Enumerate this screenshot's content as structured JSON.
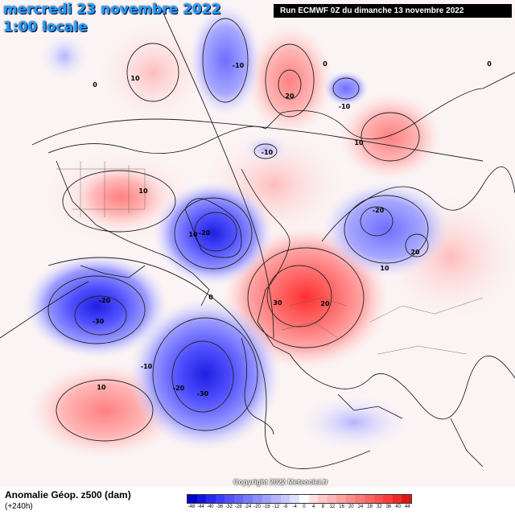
{
  "header": {
    "title_date": "mercredi 23 novembre 2022",
    "title_time": "1:00 locale",
    "run_info": "Run ECMWF 0Z du dimanche 13 novembre 2022"
  },
  "footer": {
    "field_title": "Anomalie Géop. z500 (dam)",
    "forecast_hour": "(+240h)",
    "copyright": "Copyright 2022 Meteociel.fr"
  },
  "legend": {
    "unit": "dam",
    "ticks": [
      "-48",
      "-44",
      "-40",
      "-36",
      "-32",
      "-28",
      "-24",
      "-20",
      "-16",
      "-12",
      "-8",
      "-4",
      "0",
      "4",
      "8",
      "12",
      "16",
      "20",
      "24",
      "28",
      "32",
      "36",
      "40",
      "44"
    ],
    "colors": [
      "#0000c8",
      "#1414dc",
      "#2828ee",
      "#3c3cff",
      "#5050ff",
      "#6464ff",
      "#7878ff",
      "#8c8cff",
      "#a0a0ff",
      "#b4b4ff",
      "#c8c8ff",
      "#e0e0ff",
      "#ffffff",
      "#ffe0e0",
      "#ffc8c8",
      "#ffb4b4",
      "#ffa0a0",
      "#ff8c8c",
      "#ff7878",
      "#ff6464",
      "#ff5050",
      "#ff3c3c",
      "#ee2828",
      "#dc1414"
    ]
  },
  "contour_labels": [
    {
      "text": "10",
      "place": "west pacific high"
    },
    {
      "text": "0",
      "place": "far west"
    },
    {
      "text": "-10",
      "place": "bering low"
    },
    {
      "text": "0",
      "place": "north center"
    },
    {
      "text": "20",
      "place": "siberia high"
    },
    {
      "text": "0",
      "place": "north east"
    },
    {
      "text": "-10",
      "place": "small low east"
    },
    {
      "text": "-10",
      "place": "central arctic"
    },
    {
      "text": "10",
      "place": "east high"
    },
    {
      "text": "10",
      "place": "north america high"
    },
    {
      "text": "-20",
      "place": "asia low"
    },
    {
      "text": "20",
      "place": "asia low"
    },
    {
      "text": "10",
      "place": "greenland low"
    },
    {
      "text": "-20",
      "place": "greenland low"
    },
    {
      "text": "10",
      "place": "east asia"
    },
    {
      "text": "0",
      "place": "center"
    },
    {
      "text": "-20",
      "place": "pacific low"
    },
    {
      "text": "-30",
      "place": "pacific low"
    },
    {
      "text": "30",
      "place": "europe high"
    },
    {
      "text": "20",
      "place": "europe high"
    },
    {
      "text": "-10",
      "place": "atlantic low"
    },
    {
      "text": "-20",
      "place": "atlantic low"
    },
    {
      "text": "-30",
      "place": "atlantic low"
    },
    {
      "text": "10",
      "place": "subtropic high"
    }
  ]
}
